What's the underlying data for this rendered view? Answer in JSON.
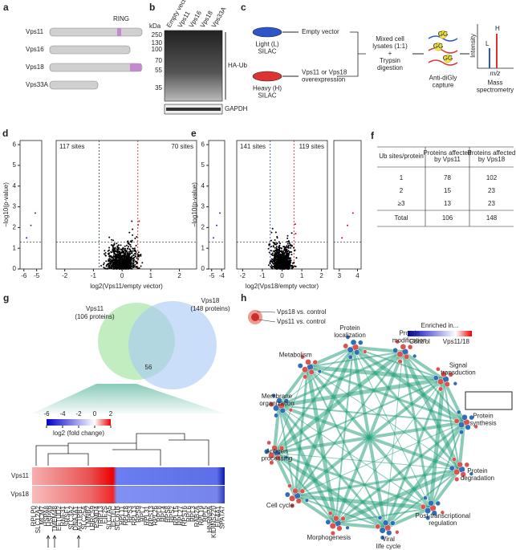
{
  "a": {
    "label": "a",
    "proteins": [
      "Vps11",
      "Vps16",
      "Vps18",
      "Vps33A"
    ],
    "ring": "RING"
  },
  "b": {
    "label": "b",
    "lanes": [
      "Empty vector",
      "Vps11",
      "Vps16",
      "Vps18",
      "Vps33A"
    ],
    "kda": "kDa",
    "markers": [
      "250",
      "130",
      "100",
      "70",
      "55",
      "35"
    ],
    "blot": "HA-Ub",
    "loading": "GAPDH"
  },
  "c": {
    "label": "c",
    "light": "Light (L)\nSILAC",
    "heavy": "Heavy (H)\nSILAC",
    "empty": "Empty vector",
    "over": "Vps11 or Vps18\noverexpression",
    "mix": "Mixed cell\nlysates (1:1)\n+\nTrypsin\ndigestion",
    "capture": "Anti-diGly\ncapture",
    "gg": "GG",
    "ms": "Mass\nspectrometry",
    "intensity": "Intensity",
    "mz": "m/z",
    "l": "L",
    "h": "H"
  },
  "d": {
    "label": "d",
    "type": "scatter",
    "ylabel": "−log10(p-value)",
    "xlabel": "log2(Vps11/empty vector)",
    "left_sites": "117 sites",
    "right_sites": "70 sites",
    "ylim": [
      0,
      6.2
    ],
    "yticks": [
      0,
      1,
      2,
      3,
      4,
      5,
      6
    ],
    "segments": [
      {
        "xlim": [
          -6.3,
          -4.6
        ],
        "xticks": [
          -6,
          -5
        ]
      },
      {
        "xlim": [
          -2.3,
          2.6
        ],
        "xticks": [
          -2,
          -1,
          0,
          1,
          2
        ]
      }
    ],
    "thresholds": [
      -0.8,
      0.55
    ],
    "pline": 1.3
  },
  "e": {
    "label": "e",
    "type": "scatter",
    "ylabel": "−log10(p-value)",
    "xlabel": "log2(Vps18/empty vector)",
    "left_sites": "141 sites",
    "right_sites": "119 sites",
    "ylim": [
      0,
      6.2
    ],
    "yticks": [
      0,
      1,
      2,
      3,
      4,
      5,
      6
    ],
    "segments": [
      {
        "xlim": [
          -5.3,
          -3.7
        ],
        "xticks": [
          -5,
          -4
        ]
      },
      {
        "xlim": [
          -2.3,
          2.3
        ],
        "xticks": [
          -2,
          -1,
          0,
          1,
          2
        ]
      },
      {
        "xlim": [
          2.7,
          4.2
        ],
        "xticks": [
          3,
          4
        ]
      }
    ],
    "thresholds": [
      -0.6,
      0.6
    ],
    "pline": 1.3
  },
  "f": {
    "label": "f",
    "table": {
      "header": [
        "Ub sites/protein",
        "Proteins affected by Vps11",
        "Proteins affected by Vps18"
      ],
      "rows": [
        [
          "1",
          "78",
          "102"
        ],
        [
          "2",
          "15",
          "23"
        ],
        [
          "≥3",
          "13",
          "23"
        ],
        [
          "Total",
          "106",
          "148"
        ]
      ]
    }
  },
  "g": {
    "label": "g",
    "venn_a": "Vps11\n(106 proteins)",
    "venn_b": "Vps18\n(148 proteins)",
    "overlap": "56",
    "cbar_ticks": [
      -6,
      -4,
      -2,
      0,
      2
    ],
    "cbar_label": "log2 (fold change)",
    "rows": [
      "Vps11",
      "Vps18"
    ],
    "genes": [
      "RPLP0",
      "SLC12A2",
      "MCM7",
      "HSPA8",
      "HSPA9",
      "TMEM48",
      "EFTUD2",
      "RNF31",
      "SRSF1",
      "SLC3A2",
      "DNAJA1",
      "AGTPB1",
      "SLC25A",
      "LMNB2",
      "LRRC59",
      "PSMD4",
      "TRIP13",
      "EIF2S",
      "SLC7A5",
      "EFTEC",
      "SEC61B",
      "RPL11",
      "RPL18",
      "RPS3",
      "RPL13",
      "RPS9",
      "RPL7",
      "RPL31",
      "RPS13",
      "RPL26",
      "RPL8",
      "RPL4",
      "RPS8",
      "RPS2",
      "RPL15",
      "RPL27",
      "RPS16",
      "RPL6",
      "RPL3",
      "RAB2A",
      "RPL19",
      "RPL5",
      "HNRNPA",
      "KIDINS220",
      "EIF4A1",
      "SPATA7"
    ]
  },
  "h": {
    "label": "h",
    "legend_outer": "Vps18 vs. control",
    "legend_inner": "Vps11 vs. control",
    "enriched": "Enriched in...",
    "control": "Control",
    "vps": "Vps11/18",
    "nodes": [
      "Metabolism",
      "Protein\nlocalization",
      "Protein\nmodification",
      "Signal\ntransduction",
      "Protein\nsynthesis",
      "Protein\ndegradation",
      "Post-transcriptional\nregulation",
      "Viral\nlife cycle",
      "Morphogenesis",
      "Cell cycle",
      "Antigen\nprocessing",
      "Membrane\norganization"
    ]
  }
}
